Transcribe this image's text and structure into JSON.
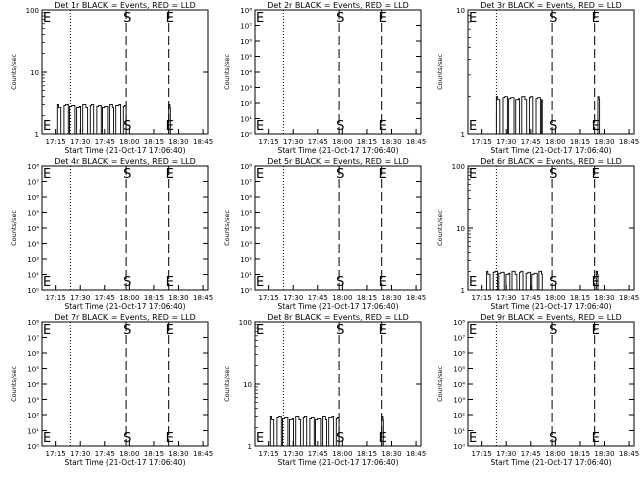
{
  "chart_data": [
    {
      "type": "line",
      "title": "Det 1r BLACK = Events, RED = LLD",
      "xlabel": "Start Time (21-Oct-17 17:06:40)",
      "ylabel": "Counts/sec",
      "xticks": [
        "17:15",
        "17:30",
        "17:45",
        "18:00",
        "18:15",
        "18:30",
        "18:45"
      ],
      "yscale": "log",
      "ylim": [
        1,
        100
      ],
      "yticks": [
        "1",
        "10",
        "100"
      ],
      "markers": [
        {
          "label": "E",
          "time": "17:06:40",
          "style": "label"
        },
        {
          "label": "",
          "time": "17:24",
          "style": "dotted"
        },
        {
          "label": "S",
          "time": "17:58",
          "style": "dashed"
        },
        {
          "label": "E",
          "time": "18:24",
          "style": "dashed"
        }
      ],
      "series": [
        {
          "values_desc": "",
          "segments": [
            {
              "t0": "17:16",
              "t1": "17:58",
              "low": 1.0,
              "high": 3.0
            },
            {
              "t0": "18:24",
              "t1": "18:25",
              "low": 1.0,
              "high": 3.0
            }
          ]
        }
      ]
    },
    {
      "type": "line",
      "title": "Det 2r BLACK = Events, RED = LLD",
      "xlabel": "Start Time (21-Oct-17 17:06:40)",
      "ylabel": "Counts/sec",
      "xticks": [
        "17:15",
        "17:30",
        "17:45",
        "18:00",
        "18:15",
        "18:30",
        "18:45"
      ],
      "yscale": "log",
      "ylim": [
        1,
        100000000
      ],
      "yticks": [
        "10⁰",
        "10¹",
        "10²",
        "10³",
        "10⁴",
        "10⁵",
        "10⁶",
        "10⁷",
        "10⁸"
      ],
      "markers": [
        {
          "label": "E",
          "time": "17:06:40",
          "style": "label"
        },
        {
          "label": "",
          "time": "17:24",
          "style": "dotted"
        },
        {
          "label": "S",
          "time": "17:58",
          "style": "dashed"
        },
        {
          "label": "E",
          "time": "18:24",
          "style": "dashed"
        }
      ],
      "series": [
        {
          "segments": []
        }
      ]
    },
    {
      "type": "line",
      "title": "Det 3r BLACK = Events, RED = LLD",
      "xlabel": "Start Time (21-Oct-17 17:06:40)",
      "ylabel": "Counts/sec",
      "xticks": [
        "17:15",
        "17:30",
        "17:45",
        "18:00",
        "18:15",
        "18:30",
        "18:45"
      ],
      "yscale": "log",
      "ylim": [
        1,
        10
      ],
      "yticks": [
        "1",
        "10"
      ],
      "markers": [
        {
          "label": "E",
          "time": "17:06:40",
          "style": "label"
        },
        {
          "label": "",
          "time": "17:24",
          "style": "dotted"
        },
        {
          "label": "S",
          "time": "17:58",
          "style": "dashed"
        },
        {
          "label": "E",
          "time": "18:24",
          "style": "dashed"
        }
      ],
      "series": [
        {
          "segments": [
            {
              "t0": "17:24",
              "t1": "17:52",
              "low": 1.0,
              "high": 2.0
            },
            {
              "t0": "18:26",
              "t1": "18:27",
              "low": 1.0,
              "high": 2.0
            }
          ]
        }
      ]
    },
    {
      "type": "line",
      "title": "Det 4r BLACK = Events, RED = LLD",
      "xlabel": "Start Time (21-Oct-17 17:06:40)",
      "ylabel": "Counts/sec",
      "xticks": [
        "17:15",
        "17:30",
        "17:45",
        "18:00",
        "18:15",
        "18:30",
        "18:45"
      ],
      "yscale": "log",
      "ylim": [
        1,
        100000000
      ],
      "yticks": [
        "10⁰",
        "10¹",
        "10²",
        "10³",
        "10⁴",
        "10⁵",
        "10⁶",
        "10⁷",
        "10⁸"
      ],
      "markers": [
        {
          "label": "E",
          "time": "17:06:40",
          "style": "label"
        },
        {
          "label": "",
          "time": "17:24",
          "style": "dotted"
        },
        {
          "label": "S",
          "time": "17:58",
          "style": "dashed"
        },
        {
          "label": "E",
          "time": "18:24",
          "style": "dashed"
        }
      ],
      "series": [
        {
          "segments": []
        }
      ]
    },
    {
      "type": "line",
      "title": "Det 5r BLACK = Events, RED = LLD",
      "xlabel": "Start Time (21-Oct-17 17:06:40)",
      "ylabel": "Counts/sec",
      "xticks": [
        "17:15",
        "17:30",
        "17:45",
        "18:00",
        "18:15",
        "18:30",
        "18:45"
      ],
      "yscale": "log",
      "ylim": [
        1,
        100000000
      ],
      "yticks": [
        "10⁰",
        "10¹",
        "10²",
        "10³",
        "10⁴",
        "10⁵",
        "10⁶",
        "10⁷",
        "10⁸"
      ],
      "markers": [
        {
          "label": "E",
          "time": "17:06:40",
          "style": "label"
        },
        {
          "label": "",
          "time": "17:24",
          "style": "dotted"
        },
        {
          "label": "S",
          "time": "17:58",
          "style": "dashed"
        },
        {
          "label": "E",
          "time": "18:24",
          "style": "dashed"
        }
      ],
      "series": [
        {
          "segments": []
        }
      ]
    },
    {
      "type": "line",
      "title": "Det 6r BLACK = Events, RED = LLD",
      "xlabel": "Start Time (21-Oct-17 17:06:40)",
      "ylabel": "Counts/sec",
      "xticks": [
        "17:15",
        "17:30",
        "17:45",
        "18:00",
        "18:15",
        "18:30",
        "18:45"
      ],
      "yscale": "log",
      "ylim": [
        1,
        100
      ],
      "yticks": [
        "1",
        "10",
        "100"
      ],
      "markers": [
        {
          "label": "E",
          "time": "17:06:40",
          "style": "label"
        },
        {
          "label": "",
          "time": "17:24",
          "style": "dotted"
        },
        {
          "label": "S",
          "time": "17:58",
          "style": "dashed"
        },
        {
          "label": "E",
          "time": "18:24",
          "style": "dashed"
        }
      ],
      "series": [
        {
          "segments": [
            {
              "t0": "17:18",
              "t1": "17:52",
              "low": 1.0,
              "high": 2.0
            },
            {
              "t0": "18:25",
              "t1": "18:26",
              "low": 1.0,
              "high": 2.0
            }
          ]
        }
      ]
    },
    {
      "type": "line",
      "title": "Det 7r BLACK = Events, RED = LLD",
      "xlabel": "Start Time (21-Oct-17 17:06:40)",
      "ylabel": "Counts/sec",
      "xticks": [
        "17:15",
        "17:30",
        "17:45",
        "18:00",
        "18:15",
        "18:30",
        "18:45"
      ],
      "yscale": "log",
      "ylim": [
        1,
        100000000
      ],
      "yticks": [
        "10⁰",
        "10¹",
        "10²",
        "10³",
        "10⁴",
        "10⁵",
        "10⁶",
        "10⁷",
        "10⁸"
      ],
      "markers": [
        {
          "label": "E",
          "time": "17:06:40",
          "style": "label"
        },
        {
          "label": "",
          "time": "17:24",
          "style": "dotted"
        },
        {
          "label": "S",
          "time": "17:58",
          "style": "dashed"
        },
        {
          "label": "E",
          "time": "18:24",
          "style": "dashed"
        }
      ],
      "series": [
        {
          "segments": []
        }
      ]
    },
    {
      "type": "line",
      "title": "Det 8r BLACK = Events, RED = LLD",
      "xlabel": "Start Time (21-Oct-17 17:06:40)",
      "ylabel": "Counts/sec",
      "xticks": [
        "17:15",
        "17:30",
        "17:45",
        "18:00",
        "18:15",
        "18:30",
        "18:45"
      ],
      "yscale": "log",
      "ylim": [
        1,
        100
      ],
      "yticks": [
        "1",
        "10",
        "100"
      ],
      "markers": [
        {
          "label": "E",
          "time": "17:06:40",
          "style": "label"
        },
        {
          "label": "",
          "time": "17:24",
          "style": "dotted"
        },
        {
          "label": "S",
          "time": "17:58",
          "style": "dashed"
        },
        {
          "label": "E",
          "time": "18:24",
          "style": "dashed"
        }
      ],
      "series": [
        {
          "segments": [
            {
              "t0": "17:16",
              "t1": "17:58",
              "low": 1.0,
              "high": 3.0
            },
            {
              "t0": "18:24",
              "t1": "18:25",
              "low": 1.0,
              "high": 3.0
            }
          ]
        }
      ]
    },
    {
      "type": "line",
      "title": "Det 9r BLACK = Events, RED = LLD",
      "xlabel": "Start Time (21-Oct-17 17:06:40)",
      "ylabel": "Counts/sec",
      "xticks": [
        "17:15",
        "17:30",
        "17:45",
        "18:00",
        "18:15",
        "18:30",
        "18:45"
      ],
      "yscale": "log",
      "ylim": [
        1,
        100000000
      ],
      "yticks": [
        "10⁰",
        "10¹",
        "10²",
        "10³",
        "10⁴",
        "10⁵",
        "10⁶",
        "10⁷",
        "10⁸"
      ],
      "markers": [
        {
          "label": "E",
          "time": "17:06:40",
          "style": "label"
        },
        {
          "label": "",
          "time": "17:24",
          "style": "dotted"
        },
        {
          "label": "S",
          "time": "17:58",
          "style": "dashed"
        },
        {
          "label": "E",
          "time": "18:24",
          "style": "dashed"
        }
      ],
      "series": [
        {
          "segments": []
        }
      ]
    }
  ]
}
